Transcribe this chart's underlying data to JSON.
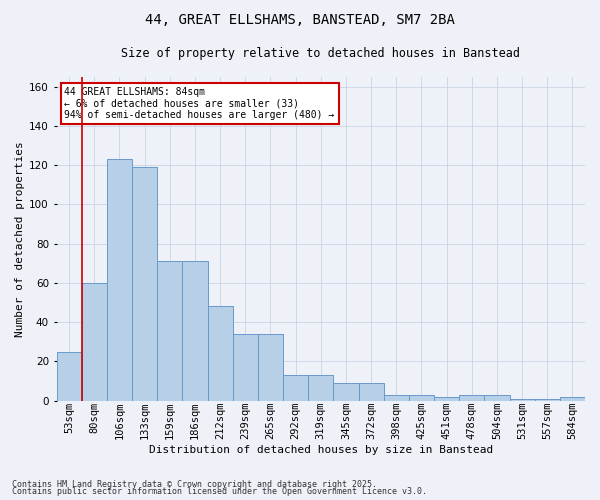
{
  "title": "44, GREAT ELLSHAMS, BANSTEAD, SM7 2BA",
  "subtitle": "Size of property relative to detached houses in Banstead",
  "xlabel": "Distribution of detached houses by size in Banstead",
  "ylabel": "Number of detached properties",
  "footer1": "Contains HM Land Registry data © Crown copyright and database right 2025.",
  "footer2": "Contains public sector information licensed under the Open Government Licence v3.0.",
  "annotation_title": "44 GREAT ELLSHAMS: 84sqm",
  "annotation_line2": "← 6% of detached houses are smaller (33)",
  "annotation_line3": "94% of semi-detached houses are larger (480) →",
  "bar_color": "#b8cfe8",
  "bar_edge_color": "#6699cc",
  "grid_color": "#c8d4e4",
  "background_color": "#eef2f8",
  "annotation_box_color": "#cc0000",
  "vline_color": "#cc0000",
  "vline_x_idx": 1,
  "categories": [
    "53sqm",
    "80sqm",
    "106sqm",
    "133sqm",
    "159sqm",
    "186sqm",
    "212sqm",
    "239sqm",
    "265sqm",
    "292sqm",
    "319sqm",
    "345sqm",
    "372sqm",
    "398sqm",
    "425sqm",
    "451sqm",
    "478sqm",
    "504sqm",
    "531sqm",
    "557sqm",
    "584sqm"
  ],
  "values": [
    25,
    60,
    123,
    119,
    71,
    71,
    48,
    34,
    34,
    13,
    13,
    9,
    9,
    3,
    3,
    2,
    3,
    3,
    1,
    1,
    2
  ],
  "ylim": [
    0,
    165
  ],
  "yticks": [
    0,
    20,
    40,
    60,
    80,
    100,
    120,
    140,
    160
  ],
  "title_fontsize": 10,
  "subtitle_fontsize": 8.5,
  "ylabel_fontsize": 8,
  "xlabel_fontsize": 8,
  "tick_fontsize": 7.5,
  "annotation_fontsize": 7,
  "footer_fontsize": 6
}
